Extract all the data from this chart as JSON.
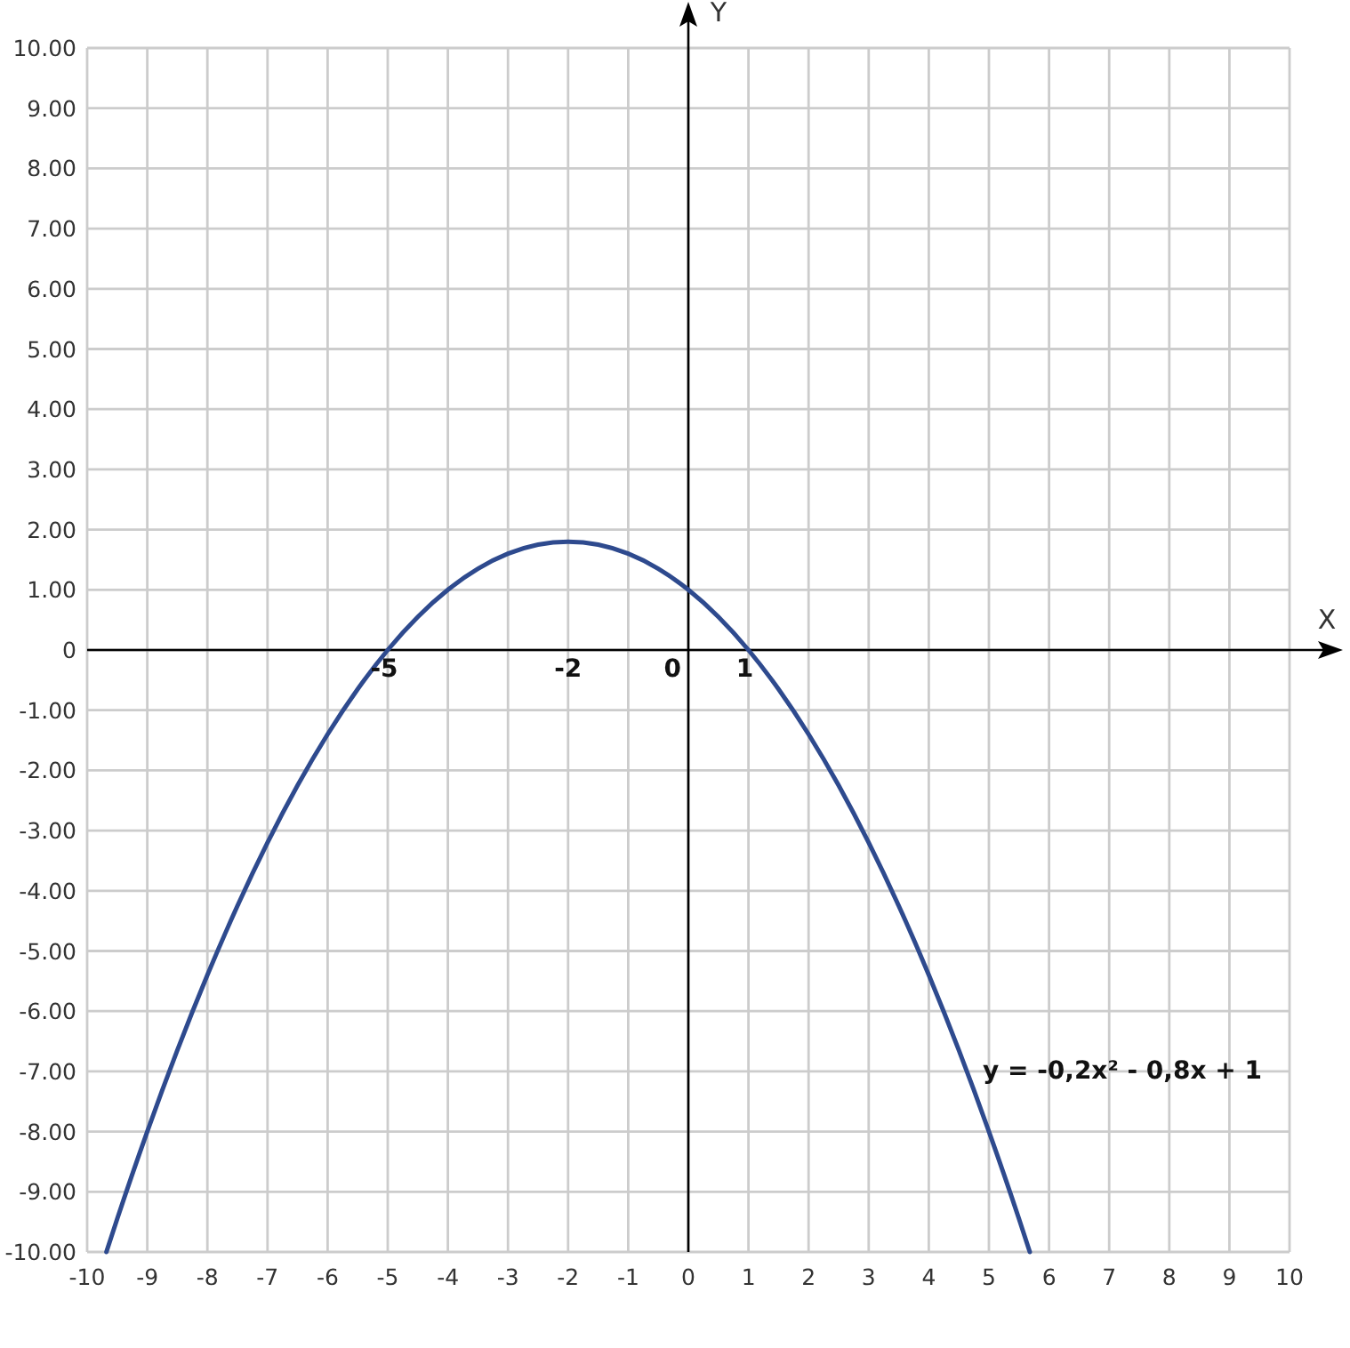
{
  "chart_data": {
    "type": "line",
    "xlabel": "X",
    "ylabel": "Y",
    "series": [
      {
        "name": "y = -0,2x² - 0,8x + 1",
        "color": "#2e4a8e",
        "x": [
          -9.68,
          -9.5,
          -9,
          -8.5,
          -8,
          -7.5,
          -7,
          -6.5,
          -6,
          -5.5,
          -5,
          -4.5,
          -4,
          -3.5,
          -3,
          -2.5,
          -2,
          -1.5,
          -1,
          -0.5,
          0,
          0.5,
          1,
          1.5,
          2,
          2.5,
          3,
          3.5,
          4,
          4.5,
          5,
          5.5,
          5.68
        ],
        "values": [
          -10,
          -9.45,
          -8,
          -6.65,
          -5.4,
          -4.25,
          -3.2,
          -2.25,
          -1.4,
          -0.65,
          0,
          0.55,
          1,
          1.35,
          1.6,
          1.75,
          1.8,
          1.75,
          1.6,
          1.35,
          1,
          0.55,
          0,
          -0.65,
          -1.4,
          -2.25,
          -3.2,
          -4.25,
          -5.4,
          -6.65,
          -8,
          -9.45,
          -10
        ]
      }
    ],
    "xlim": [
      -10,
      10
    ],
    "xticks": [
      -10,
      -9,
      -8,
      -7,
      -6,
      -5,
      -4,
      -3,
      -2,
      -1,
      0,
      1,
      2,
      3,
      4,
      5,
      6,
      7,
      8,
      9,
      10
    ],
    "ylim": [
      -10,
      10
    ],
    "yticks": [
      {
        "value": -10,
        "label": "-10.00"
      },
      {
        "value": -9,
        "label": "-9.00"
      },
      {
        "value": -8,
        "label": "-8.00"
      },
      {
        "value": -7,
        "label": "-7.00"
      },
      {
        "value": -6,
        "label": "-6.00"
      },
      {
        "value": -5,
        "label": "-5.00"
      },
      {
        "value": -4,
        "label": "-4.00"
      },
      {
        "value": -3,
        "label": "-3.00"
      },
      {
        "value": -2,
        "label": "-2.00"
      },
      {
        "value": -1,
        "label": "-1.00"
      },
      0,
      {
        "value": 1,
        "label": "1.00"
      },
      {
        "value": 2,
        "label": "2.00"
      },
      {
        "value": 3,
        "label": "3.00"
      },
      {
        "value": 4,
        "label": "4.00"
      },
      {
        "value": 5,
        "label": "5.00"
      },
      {
        "value": 6,
        "label": "6.00"
      },
      {
        "value": 7,
        "label": "7.00"
      },
      {
        "value": 8,
        "label": "8.00"
      },
      {
        "value": 9,
        "label": "9.00"
      },
      {
        "value": 10,
        "label": "10.00"
      }
    ],
    "grid": true,
    "annotations": [
      {
        "text": "-5",
        "x": -5,
        "y": 0
      },
      "-2",
      "0",
      {
        "text": "1",
        "x": 1,
        "y": 0
      }
    ]
  }
}
